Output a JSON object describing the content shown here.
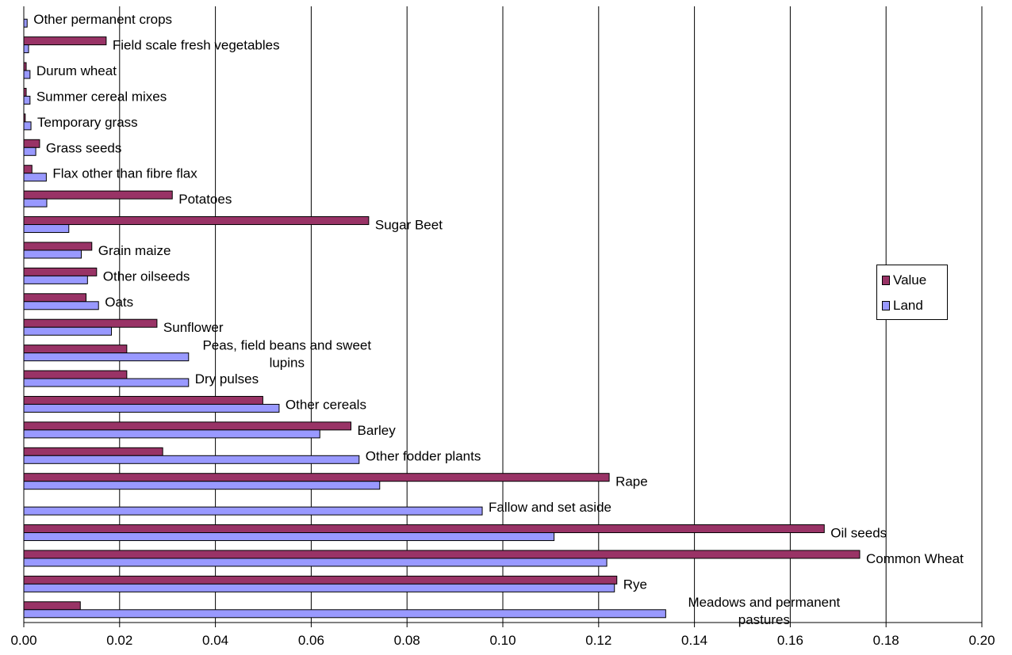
{
  "chart_data": {
    "type": "bar",
    "orientation": "horizontal",
    "categories": [
      "Other permanent crops",
      "Field scale fresh vegetables",
      "Durum wheat",
      "Summer cereal mixes",
      "Temporary grass",
      "Grass seeds",
      "Flax other than fibre flax",
      "Potatoes",
      "Sugar Beet",
      "Grain maize",
      "Other oilseeds",
      "Oats",
      "Sunflower",
      "Peas, field beans and sweet lupins",
      "Dry pulses",
      "Other cereals",
      "Barley",
      "Other fodder plants",
      "Rape",
      "Fallow and set aside",
      "Oil seeds",
      "Common Wheat",
      "Rye",
      "Meadows and permanent pastures"
    ],
    "series": [
      {
        "name": "Value",
        "color": "#993366",
        "values": [
          0.0,
          0.0172,
          0.0005,
          0.0005,
          0.0003,
          0.0033,
          0.0017,
          0.031,
          0.072,
          0.0142,
          0.0152,
          0.013,
          0.0278,
          0.0215,
          0.0215,
          0.0499,
          0.0683,
          0.029,
          0.1222,
          0.0,
          0.1671,
          0.1745,
          0.1238,
          0.0118
        ]
      },
      {
        "name": "Land",
        "color": "#9999ff",
        "values": [
          0.0007,
          0.001,
          0.0013,
          0.0013,
          0.0015,
          0.0025,
          0.0047,
          0.0048,
          0.0094,
          0.012,
          0.0133,
          0.0156,
          0.0183,
          0.0344,
          0.0344,
          0.0533,
          0.0618,
          0.07,
          0.0743,
          0.0957,
          0.1107,
          0.1217,
          0.1233,
          0.134
        ]
      }
    ],
    "xlim": [
      0,
      0.2
    ],
    "x_ticks": [
      "0.00",
      "0.02",
      "0.04",
      "0.06",
      "0.08",
      "0.10",
      "0.12",
      "0.14",
      "0.16",
      "0.18",
      "0.20"
    ],
    "grid": "vertical",
    "legend_position": "right",
    "title": "",
    "xlabel": "",
    "ylabel": ""
  }
}
